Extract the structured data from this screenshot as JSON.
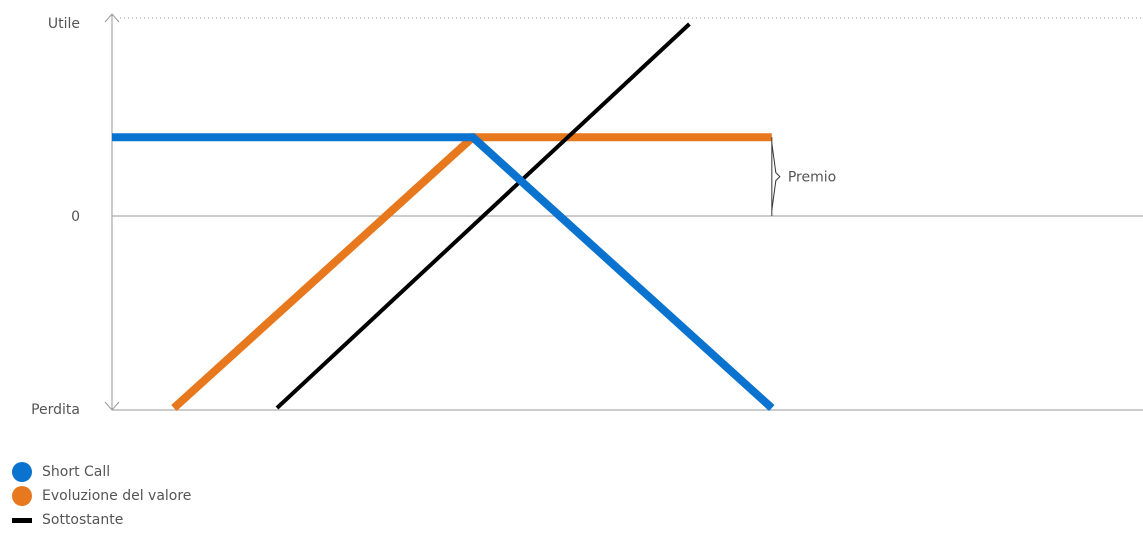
{
  "chart_data": {
    "type": "line",
    "title": "",
    "ylabel_top": "Utile",
    "ylabel_bottom": "Perdita",
    "zero_label": "0",
    "annotation": "Premio",
    "x_range": [
      0,
      100
    ],
    "y_range": [
      -100,
      100
    ],
    "strike_x": 35,
    "premium": 41,
    "series": [
      {
        "name": "Short Call",
        "color": "#0A73CF",
        "points": [
          [
            0,
            41
          ],
          [
            35,
            41
          ],
          [
            64,
            -100
          ]
        ]
      },
      {
        "name": "Evoluzione del valore",
        "color": "#E8781E",
        "points": [
          [
            6,
            -100
          ],
          [
            35,
            41
          ],
          [
            64,
            41
          ]
        ]
      },
      {
        "name": "Sottostante",
        "color": "#000000",
        "points": [
          [
            16,
            -100
          ],
          [
            56,
            100
          ]
        ]
      }
    ]
  },
  "legend": [
    {
      "label": "Short Call",
      "color": "#0A73CF",
      "shape": "dot"
    },
    {
      "label": "Evoluzione del valore",
      "color": "#E8781E",
      "shape": "dot"
    },
    {
      "label": "Sottostante",
      "color": "#000000",
      "shape": "bar"
    }
  ]
}
